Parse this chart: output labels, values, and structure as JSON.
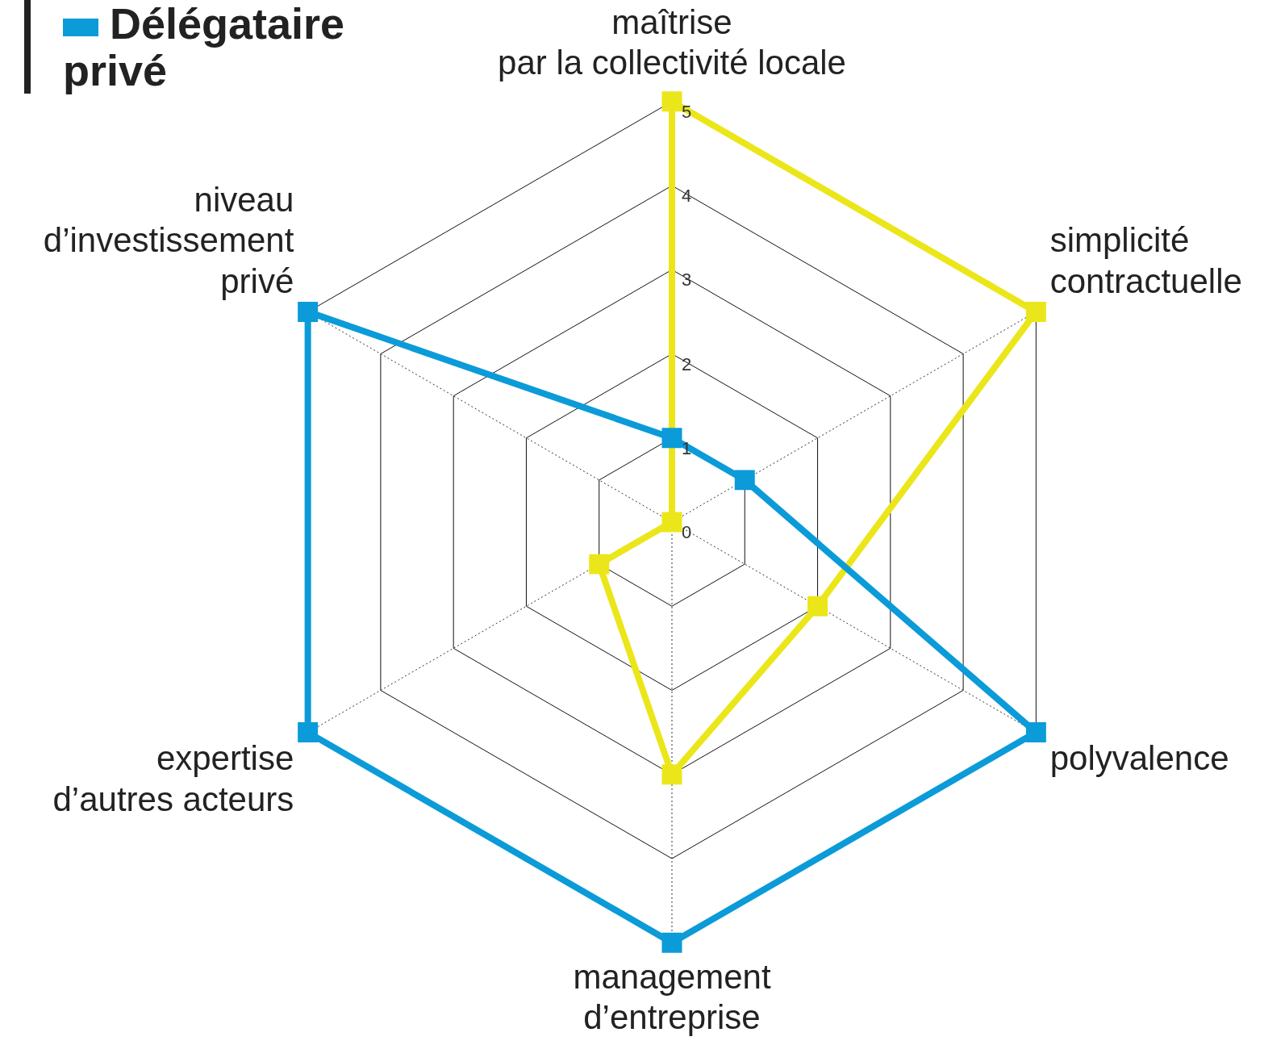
{
  "chart_data": {
    "type": "radar",
    "categories": [
      "maîtrise\npar la collectivité locale",
      "simplicité\ncontractuelle",
      "polyvalence",
      "management\nd’entreprise",
      "expertise\nd’autres acteurs",
      "niveau\nd’investissement\nprivé"
    ],
    "series": [
      {
        "color": "#ebe61a",
        "values": [
          5,
          5,
          2,
          3,
          1,
          0
        ]
      },
      {
        "name": "Délégataire privé",
        "color": "#0b9bd8",
        "values": [
          1,
          1,
          5,
          5,
          5,
          5
        ]
      }
    ],
    "ylim": [
      0,
      5
    ],
    "yticks": [
      0,
      1,
      2,
      3,
      4,
      5
    ],
    "grid": true,
    "marker": "square",
    "line_style": "solid",
    "legend": "top left"
  }
}
